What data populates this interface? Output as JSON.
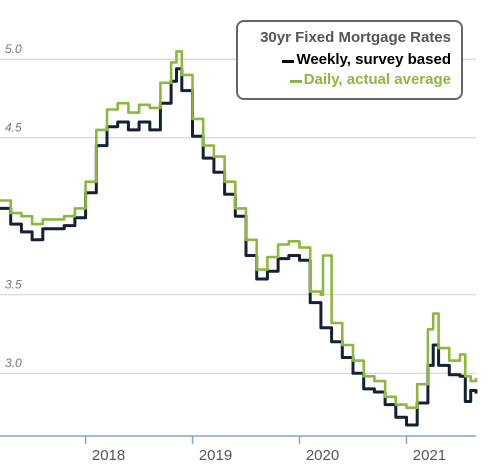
{
  "chart_data": {
    "type": "line",
    "title": "30yr Fixed Mortgage Rates",
    "xlabel": "",
    "ylabel": "",
    "xlim": [
      2017.2,
      2021.65
    ],
    "ylim": [
      2.6,
      5.25
    ],
    "yticks": [
      "5.0",
      "4.5",
      "3.5",
      "3.0"
    ],
    "ytick_values": [
      5.0,
      4.5,
      3.5,
      3.0
    ],
    "xticks": [
      "2018",
      "2019",
      "2020",
      "2021"
    ],
    "xtick_values": [
      2018,
      2019,
      2020,
      2021
    ],
    "grid": true,
    "legend_position": "top-right",
    "series": [
      {
        "name": "Weekly, survey based",
        "color": "#142034",
        "x": [
          2017.2,
          2017.3,
          2017.4,
          2017.5,
          2017.6,
          2017.7,
          2017.8,
          2017.9,
          2018.0,
          2018.1,
          2018.2,
          2018.3,
          2018.4,
          2018.5,
          2018.6,
          2018.7,
          2018.8,
          2018.85,
          2018.9,
          2019.0,
          2019.1,
          2019.2,
          2019.3,
          2019.4,
          2019.5,
          2019.6,
          2019.7,
          2019.8,
          2019.9,
          2020.0,
          2020.1,
          2020.2,
          2020.3,
          2020.4,
          2020.5,
          2020.6,
          2020.7,
          2020.8,
          2020.9,
          2021.0,
          2021.1,
          2021.2,
          2021.25,
          2021.3,
          2021.4,
          2021.5,
          2021.55,
          2021.6,
          2021.65
        ],
        "y": [
          4.05,
          3.95,
          3.9,
          3.85,
          3.92,
          3.92,
          3.94,
          3.99,
          4.15,
          4.45,
          4.57,
          4.6,
          4.55,
          4.6,
          4.55,
          4.72,
          4.86,
          4.94,
          4.8,
          4.51,
          4.37,
          4.28,
          4.14,
          4.0,
          3.75,
          3.6,
          3.65,
          3.73,
          3.75,
          3.72,
          3.45,
          3.29,
          3.2,
          3.1,
          3.0,
          2.9,
          2.88,
          2.8,
          2.72,
          2.67,
          2.81,
          3.05,
          3.18,
          3.05,
          2.99,
          2.98,
          2.82,
          2.89,
          2.87
        ]
      },
      {
        "name": "Daily, actual average",
        "color": "#8db840",
        "x": [
          2017.2,
          2017.3,
          2017.4,
          2017.5,
          2017.6,
          2017.7,
          2017.8,
          2017.9,
          2018.0,
          2018.1,
          2018.2,
          2018.3,
          2018.4,
          2018.5,
          2018.6,
          2018.7,
          2018.8,
          2018.85,
          2018.9,
          2019.0,
          2019.1,
          2019.2,
          2019.3,
          2019.4,
          2019.5,
          2019.6,
          2019.7,
          2019.8,
          2019.9,
          2020.0,
          2020.1,
          2020.2,
          2020.22,
          2020.3,
          2020.4,
          2020.5,
          2020.6,
          2020.7,
          2020.8,
          2020.9,
          2021.0,
          2021.1,
          2021.2,
          2021.25,
          2021.3,
          2021.4,
          2021.5,
          2021.55,
          2021.6,
          2021.65
        ],
        "y": [
          4.1,
          4.02,
          4.0,
          3.95,
          3.98,
          3.98,
          4.0,
          4.05,
          4.22,
          4.55,
          4.68,
          4.72,
          4.66,
          4.71,
          4.69,
          4.85,
          4.98,
          5.05,
          4.9,
          4.62,
          4.45,
          4.38,
          4.22,
          4.05,
          3.85,
          3.66,
          3.74,
          3.82,
          3.84,
          3.8,
          3.52,
          3.5,
          3.75,
          3.32,
          3.18,
          3.08,
          2.98,
          2.95,
          2.85,
          2.8,
          2.78,
          2.93,
          3.28,
          3.38,
          3.16,
          3.08,
          3.12,
          2.98,
          2.95,
          2.97
        ]
      }
    ]
  }
}
